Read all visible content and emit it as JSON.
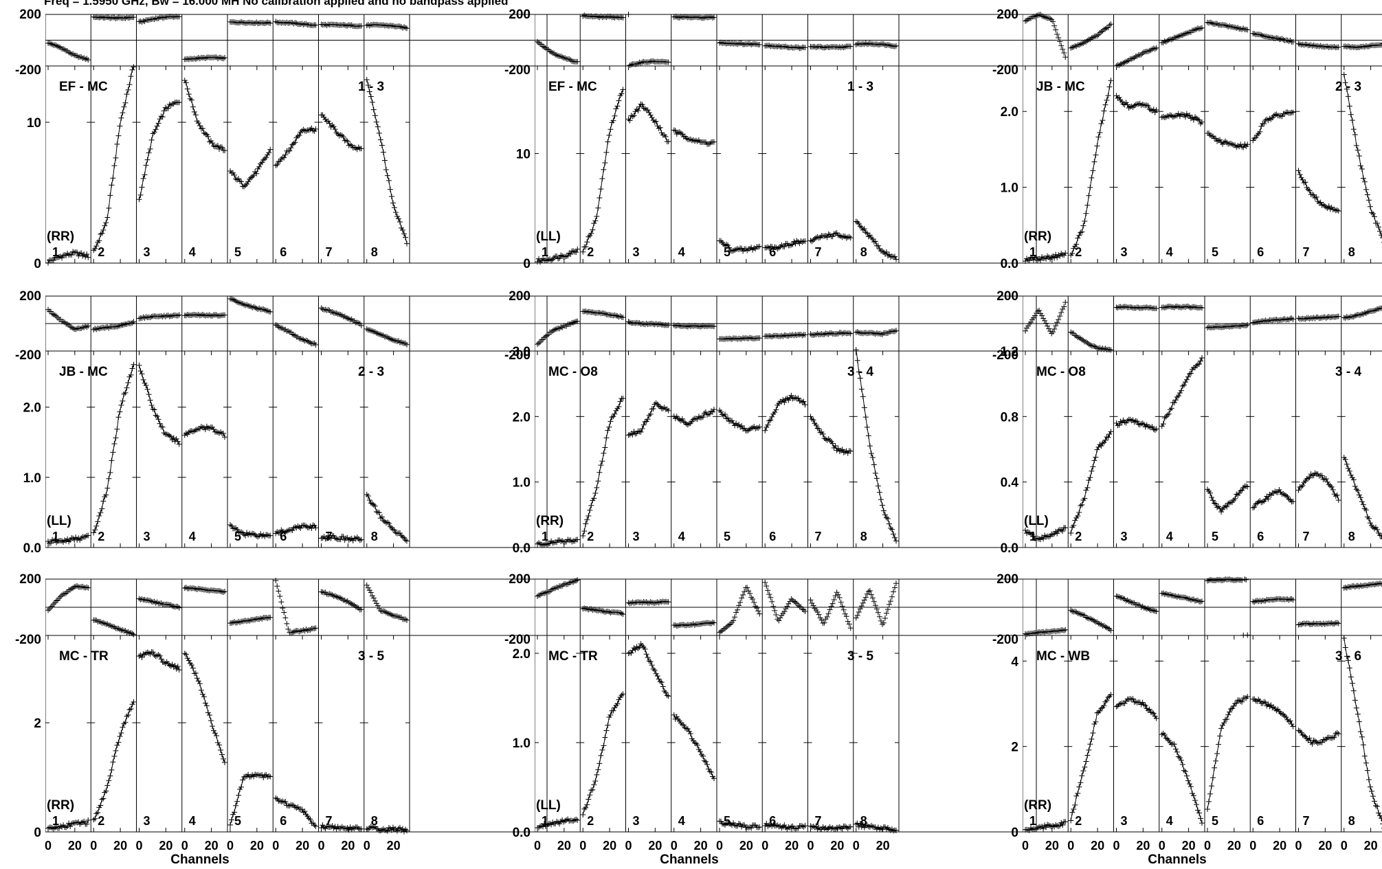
{
  "header": "Freq = 1.5950 GHz, Bw = 16.000 MH   No calibration applied and no bandpass applied",
  "chart_data": {
    "type": "scatter",
    "description_free": true,
    "shared": {
      "channels_per_panel": 30,
      "x_ticks": [
        "0",
        "20"
      ],
      "xlabel": "Channels",
      "phase_ylim": [
        -200,
        200
      ],
      "phase_ticks": [
        "200",
        "-200"
      ],
      "if_labels": [
        "1",
        "2",
        "3",
        "4",
        "5",
        "6",
        "7",
        "8"
      ],
      "marker": "+",
      "color": "#000000"
    },
    "plots": [
      {
        "col": 0,
        "row": 0,
        "baseline": "EF - MC",
        "index": "1 - 3",
        "pol": "(RR)",
        "amp_ylim": [
          0,
          14
        ],
        "amp_ticks": [
          0,
          10
        ],
        "amp_tick_labels": [
          "0",
          "10"
        ],
        "amp": [
          [
            0.1,
            0.5,
            0.7,
            0.5
          ],
          [
            0.8,
            3,
            10,
            14
          ],
          [
            4.5,
            9,
            11,
            11.5
          ],
          [
            13,
            10,
            8.5,
            8
          ],
          [
            6.5,
            5.5,
            6.5,
            8
          ],
          [
            7,
            8,
            9.5,
            9.5
          ],
          [
            10.5,
            9.5,
            8.5,
            8
          ],
          [
            13,
            9,
            4,
            1.5
          ]
        ],
        "phase": [
          [
            -20,
            -60,
            -120,
            -150
          ],
          [
            180,
            175,
            172,
            178
          ],
          [
            140,
            165,
            180,
            185
          ],
          [
            -150,
            -140,
            -135,
            -140
          ],
          [
            140,
            138,
            135,
            135
          ],
          [
            140,
            135,
            125,
            115
          ],
          [
            120,
            118,
            115,
            110
          ],
          [
            115,
            118,
            110,
            95
          ]
        ]
      },
      {
        "col": 1,
        "row": 0,
        "baseline": "EF - MC",
        "index": "1 - 3",
        "pol": "(LL)",
        "amp_ylim": [
          0,
          18
        ],
        "amp_ticks": [
          0,
          10
        ],
        "amp_tick_labels": [
          "0",
          "10"
        ],
        "amp": [
          [
            0.2,
            0.4,
            0.7,
            1.2
          ],
          [
            1,
            4,
            12,
            16
          ],
          [
            13,
            14.5,
            13,
            11
          ],
          [
            12,
            11.5,
            11,
            11
          ],
          [
            2,
            1.2,
            1.2,
            1.5
          ],
          [
            1.3,
            1.5,
            1.8,
            2
          ],
          [
            2,
            2.5,
            2.6,
            2.2
          ],
          [
            3.8,
            2.5,
            1,
            0.5
          ]
        ],
        "phase": [
          [
            -10,
            -90,
            -140,
            -170
          ],
          [
            190,
            182,
            180,
            178
          ],
          [
            -200,
            -170,
            -165,
            -172
          ],
          [
            180,
            178,
            176,
            178
          ],
          [
            -20,
            -25,
            -30,
            -30
          ],
          [
            -40,
            -48,
            -55,
            -60
          ],
          [
            -50,
            -55,
            -55,
            -50
          ],
          [
            -30,
            -28,
            -32,
            -45
          ]
        ]
      },
      {
        "col": 2,
        "row": 0,
        "baseline": "JB - MC",
        "index": "2 - 3",
        "pol": "(RR)",
        "amp_ylim": [
          0,
          2.6
        ],
        "amp_ticks": [
          0,
          1,
          2
        ],
        "amp_tick_labels": [
          "0.0",
          "1.0",
          "2.0"
        ],
        "amp": [
          [
            0.05,
            0.06,
            0.08,
            0.12
          ],
          [
            0.1,
            0.5,
            1.6,
            2.4
          ],
          [
            2.2,
            2.05,
            2.1,
            2.0
          ],
          [
            1.9,
            1.95,
            1.95,
            1.85
          ],
          [
            1.7,
            1.6,
            1.55,
            1.55
          ],
          [
            1.6,
            1.9,
            1.95,
            2.0
          ],
          [
            1.2,
            0.9,
            0.75,
            0.7
          ],
          [
            2.5,
            1.5,
            0.7,
            0.3
          ]
        ],
        "phase": [
          [
            150,
            200,
            160,
            -130
          ],
          [
            -60,
            -20,
            40,
            120
          ],
          [
            -200,
            -150,
            -100,
            -60
          ],
          [
            -20,
            20,
            60,
            100
          ],
          [
            140,
            120,
            100,
            80
          ],
          [
            50,
            30,
            10,
            -10
          ],
          [
            -30,
            -40,
            -50,
            -55
          ],
          [
            -50,
            -55,
            -45,
            -30
          ]
        ]
      },
      {
        "col": 0,
        "row": 1,
        "baseline": "JB - MC",
        "index": "2 - 3",
        "pol": "(LL)",
        "amp_ylim": [
          0,
          2.8
        ],
        "amp_ticks": [
          0,
          1,
          2
        ],
        "amp_tick_labels": [
          "0.0",
          "1.0",
          "2.0"
        ],
        "amp": [
          [
            0.08,
            0.09,
            0.12,
            0.15
          ],
          [
            0.2,
            0.8,
            2.0,
            2.6
          ],
          [
            2.6,
            2.0,
            1.6,
            1.5
          ],
          [
            1.6,
            1.7,
            1.7,
            1.6
          ],
          [
            0.3,
            0.2,
            0.18,
            0.17
          ],
          [
            0.2,
            0.25,
            0.3,
            0.3
          ],
          [
            0.15,
            0.15,
            0.12,
            0.12
          ],
          [
            0.75,
            0.45,
            0.25,
            0.12
          ]
        ],
        "phase": [
          [
            100,
            20,
            -40,
            -20
          ],
          [
            -40,
            -30,
            -15,
            10
          ],
          [
            40,
            50,
            55,
            60
          ],
          [
            60,
            62,
            60,
            58
          ],
          [
            180,
            140,
            110,
            90
          ],
          [
            -10,
            -60,
            -120,
            -150
          ],
          [
            110,
            80,
            40,
            -10
          ],
          [
            -40,
            -80,
            -120,
            -150
          ]
        ]
      },
      {
        "col": 1,
        "row": 1,
        "baseline": "MC - O8",
        "index": "3 - 4",
        "pol": "(RR)",
        "amp_ylim": [
          0,
          3.0
        ],
        "amp_ticks": [
          0,
          1,
          2,
          3
        ],
        "amp_tick_labels": [
          "0.0",
          "1.0",
          "2.0",
          "3.0"
        ],
        "amp": [
          [
            0.05,
            0.07,
            0.1,
            0.1
          ],
          [
            0.2,
            0.9,
            1.9,
            2.3
          ],
          [
            1.7,
            1.8,
            2.2,
            2.1
          ],
          [
            2.0,
            1.9,
            2.0,
            2.1
          ],
          [
            2.1,
            1.9,
            1.8,
            1.85
          ],
          [
            1.8,
            2.2,
            2.3,
            2.2
          ],
          [
            2.0,
            1.7,
            1.5,
            1.45
          ],
          [
            3.0,
            1.6,
            0.6,
            0.1
          ]
        ],
        "phase": [
          [
            -150,
            -60,
            -20,
            20
          ],
          [
            90,
            80,
            65,
            45
          ],
          [
            10,
            0,
            -5,
            -10
          ],
          [
            -15,
            -18,
            -18,
            -18
          ],
          [
            -110,
            -110,
            -108,
            -105
          ],
          [
            -95,
            -90,
            -85,
            -82
          ],
          [
            -80,
            -75,
            -70,
            -70
          ],
          [
            -65,
            -70,
            -75,
            -50
          ]
        ]
      },
      {
        "col": 2,
        "row": 1,
        "baseline": "MC - O8",
        "index": "3 - 4",
        "pol": "(LL)",
        "amp_ylim": [
          0,
          1.2
        ],
        "amp_ticks": [
          0,
          0.4,
          0.8,
          1.2
        ],
        "amp_tick_labels": [
          "0.0",
          "0.4",
          "0.8",
          "1.2"
        ],
        "amp": [
          [
            0.1,
            0.05,
            0.08,
            0.12
          ],
          [
            0.1,
            0.3,
            0.6,
            0.7
          ],
          [
            0.75,
            0.78,
            0.75,
            0.72
          ],
          [
            0.75,
            0.9,
            1.05,
            1.15
          ],
          [
            0.35,
            0.22,
            0.3,
            0.38
          ],
          [
            0.25,
            0.3,
            0.35,
            0.28
          ],
          [
            0.35,
            0.45,
            0.42,
            0.3
          ],
          [
            0.55,
            0.35,
            0.15,
            0.05
          ]
        ],
        "phase": [
          [
            -50,
            100,
            -80,
            150
          ],
          [
            -60,
            -130,
            -180,
            -190
          ],
          [
            120,
            118,
            115,
            115
          ],
          [
            120,
            122,
            120,
            118
          ],
          [
            -30,
            -25,
            -20,
            -10
          ],
          [
            10,
            20,
            30,
            35
          ],
          [
            35,
            40,
            45,
            50
          ],
          [
            40,
            60,
            90,
            120
          ]
        ]
      },
      {
        "col": 0,
        "row": 2,
        "baseline": "MC - TR",
        "index": "3 - 5",
        "pol": "(RR)",
        "amp_ylim": [
          0,
          3.6
        ],
        "amp_ticks": [
          0,
          2
        ],
        "amp_tick_labels": [
          "0",
          "2"
        ],
        "amp": [
          [
            0.05,
            0.1,
            0.15,
            0.18
          ],
          [
            0.2,
            0.8,
            1.8,
            2.4
          ],
          [
            3.2,
            3.3,
            3.1,
            3.0
          ],
          [
            3.3,
            2.8,
            2.0,
            1.3
          ],
          [
            0.1,
            1.0,
            1.05,
            1.0
          ],
          [
            0.6,
            0.5,
            0.4,
            0.1
          ],
          [
            0.1,
            0.08,
            0.07,
            0.05
          ],
          [
            0.08,
            0.05,
            0.05,
            0.04
          ]
        ],
        "phase": [
          [
            -20,
            80,
            150,
            140
          ],
          [
            -90,
            -120,
            -160,
            -190
          ],
          [
            60,
            40,
            20,
            0
          ],
          [
            140,
            130,
            120,
            110
          ],
          [
            -110,
            -100,
            -85,
            -70
          ],
          [
            190,
            -180,
            -165,
            -150
          ],
          [
            110,
            80,
            40,
            -20
          ],
          [
            160,
            -20,
            -60,
            -90
          ]
        ]
      },
      {
        "col": 1,
        "row": 2,
        "baseline": "MC - TR",
        "index": "3 - 5",
        "pol": "(LL)",
        "amp_ylim": [
          0,
          2.2
        ],
        "amp_ticks": [
          0,
          1,
          2
        ],
        "amp_tick_labels": [
          "0.0",
          "1.0",
          "2.0"
        ],
        "amp": [
          [
            0.05,
            0.1,
            0.12,
            0.15
          ],
          [
            0.2,
            0.6,
            1.3,
            1.55
          ],
          [
            2.0,
            2.1,
            1.8,
            1.5
          ],
          [
            1.3,
            1.15,
            0.9,
            0.6
          ],
          [
            0.1,
            0.08,
            0.07,
            0.05
          ],
          [
            0.08,
            0.06,
            0.05,
            0.05
          ],
          [
            0.05,
            0.04,
            0.05,
            0.04
          ],
          [
            0.08,
            0.05,
            0.04,
            0.03
          ]
        ],
        "phase": [
          [
            80,
            120,
            160,
            190
          ],
          [
            -10,
            -20,
            -35,
            -45
          ],
          [
            30,
            35,
            35,
            40
          ],
          [
            -130,
            -125,
            -120,
            -110
          ],
          [
            -180,
            -100,
            150,
            -50
          ],
          [
            180,
            -100,
            60,
            -30
          ],
          [
            50,
            -120,
            110,
            -150
          ],
          [
            -80,
            130,
            -130,
            170
          ]
        ]
      },
      {
        "col": 2,
        "row": 2,
        "baseline": "MC - WB",
        "index": "3 - 6",
        "pol": "(RR)",
        "amp_ylim": [
          0,
          4.6
        ],
        "amp_ticks": [
          0,
          2,
          4
        ],
        "amp_tick_labels": [
          "0",
          "2",
          "4"
        ],
        "amp": [
          [
            0.05,
            0.1,
            0.15,
            0.2
          ],
          [
            0.3,
            1.5,
            2.8,
            3.2
          ],
          [
            2.9,
            3.1,
            3.0,
            2.7
          ],
          [
            2.3,
            2.0,
            1.2,
            0.2
          ],
          [
            0.5,
            2.4,
            3.0,
            3.15
          ],
          [
            3.1,
            3.0,
            2.8,
            2.5
          ],
          [
            2.4,
            2.1,
            2.15,
            2.3
          ],
          [
            4.5,
            2.8,
            1.0,
            0.1
          ]
        ],
        "phase": [
          [
            -190,
            -180,
            -170,
            -160
          ],
          [
            -20,
            -60,
            -110,
            -160
          ],
          [
            80,
            40,
            0,
            -30
          ],
          [
            100,
            80,
            60,
            40
          ],
          [
            190,
            195,
            195,
            198
          ],
          [
            40,
            50,
            55,
            55
          ],
          [
            -120,
            -118,
            -116,
            -115
          ],
          [
            140,
            150,
            160,
            170
          ]
        ]
      }
    ]
  }
}
